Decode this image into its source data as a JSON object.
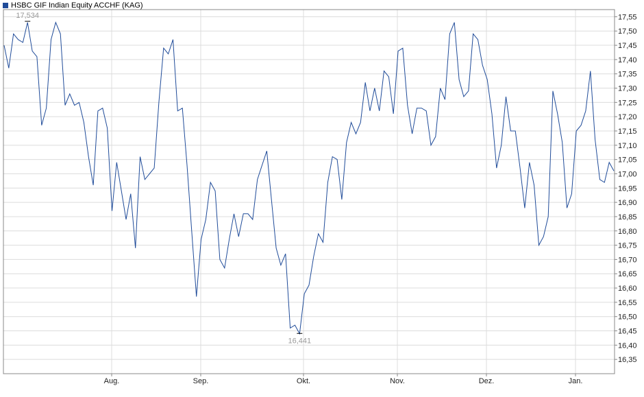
{
  "chart_data": {
    "type": "line",
    "legend": {
      "label": "HSBC GIF Indian Equity ACCHF (KAG)",
      "color": "#1f4b99",
      "placement": "top-left"
    },
    "grid": true,
    "y_axis": {
      "position": "right",
      "range": [
        16.3,
        17.575
      ],
      "ticks": [
        "16,35",
        "16,40",
        "16,45",
        "16,50",
        "16,55",
        "16,60",
        "16,65",
        "16,70",
        "16,75",
        "16,80",
        "16,85",
        "16,90",
        "16,95",
        "17,00",
        "17,05",
        "17,10",
        "17,15",
        "17,20",
        "17,25",
        "17,30",
        "17,35",
        "17,40",
        "17,45",
        "17,50",
        "17,55"
      ]
    },
    "x_axis": {
      "labels": [
        "Aug.",
        "Sep.",
        "Okt.",
        "Nov.",
        "Dez.",
        "Jan."
      ]
    },
    "series": [
      {
        "name": "HSBC GIF Indian Equity ACCHF (KAG)",
        "color": "#1f4b99",
        "values": [
          17.45,
          17.37,
          17.49,
          17.47,
          17.46,
          17.53,
          17.43,
          17.41,
          17.17,
          17.23,
          17.47,
          17.53,
          17.49,
          17.24,
          17.28,
          17.24,
          17.25,
          17.18,
          17.06,
          16.96,
          17.22,
          17.23,
          17.16,
          16.87,
          17.04,
          16.94,
          16.84,
          16.93,
          16.74,
          17.06,
          16.98,
          17.0,
          17.02,
          17.25,
          17.44,
          17.42,
          17.47,
          17.22,
          17.23,
          17.03,
          16.8,
          16.57,
          16.77,
          16.84,
          16.97,
          16.94,
          16.7,
          16.67,
          16.77,
          16.86,
          16.78,
          16.86,
          16.86,
          16.84,
          16.98,
          17.03,
          17.08,
          16.91,
          16.74,
          16.68,
          16.72,
          16.46,
          16.47,
          16.44,
          16.58,
          16.61,
          16.71,
          16.79,
          16.76,
          16.97,
          17.06,
          17.05,
          16.91,
          17.11,
          17.18,
          17.14,
          17.18,
          17.32,
          17.22,
          17.3,
          17.22,
          17.36,
          17.34,
          17.21,
          17.43,
          17.44,
          17.24,
          17.14,
          17.23,
          17.23,
          17.22,
          17.1,
          17.13,
          17.3,
          17.26,
          17.49,
          17.53,
          17.33,
          17.27,
          17.29,
          17.49,
          17.47,
          17.38,
          17.33,
          17.21,
          17.02,
          17.1,
          17.27,
          17.15,
          17.15,
          17.02,
          16.88,
          17.04,
          16.96,
          16.75,
          16.78,
          16.85,
          17.29,
          17.21,
          17.11,
          16.88,
          16.93,
          17.15,
          17.17,
          17.22,
          17.36,
          17.12,
          16.98,
          16.97,
          17.04,
          17.01
        ]
      }
    ],
    "annotations": [
      {
        "label": "17,534",
        "type": "max",
        "value": 17.534
      },
      {
        "label": "16,441",
        "type": "min",
        "value": 16.441
      }
    ]
  }
}
